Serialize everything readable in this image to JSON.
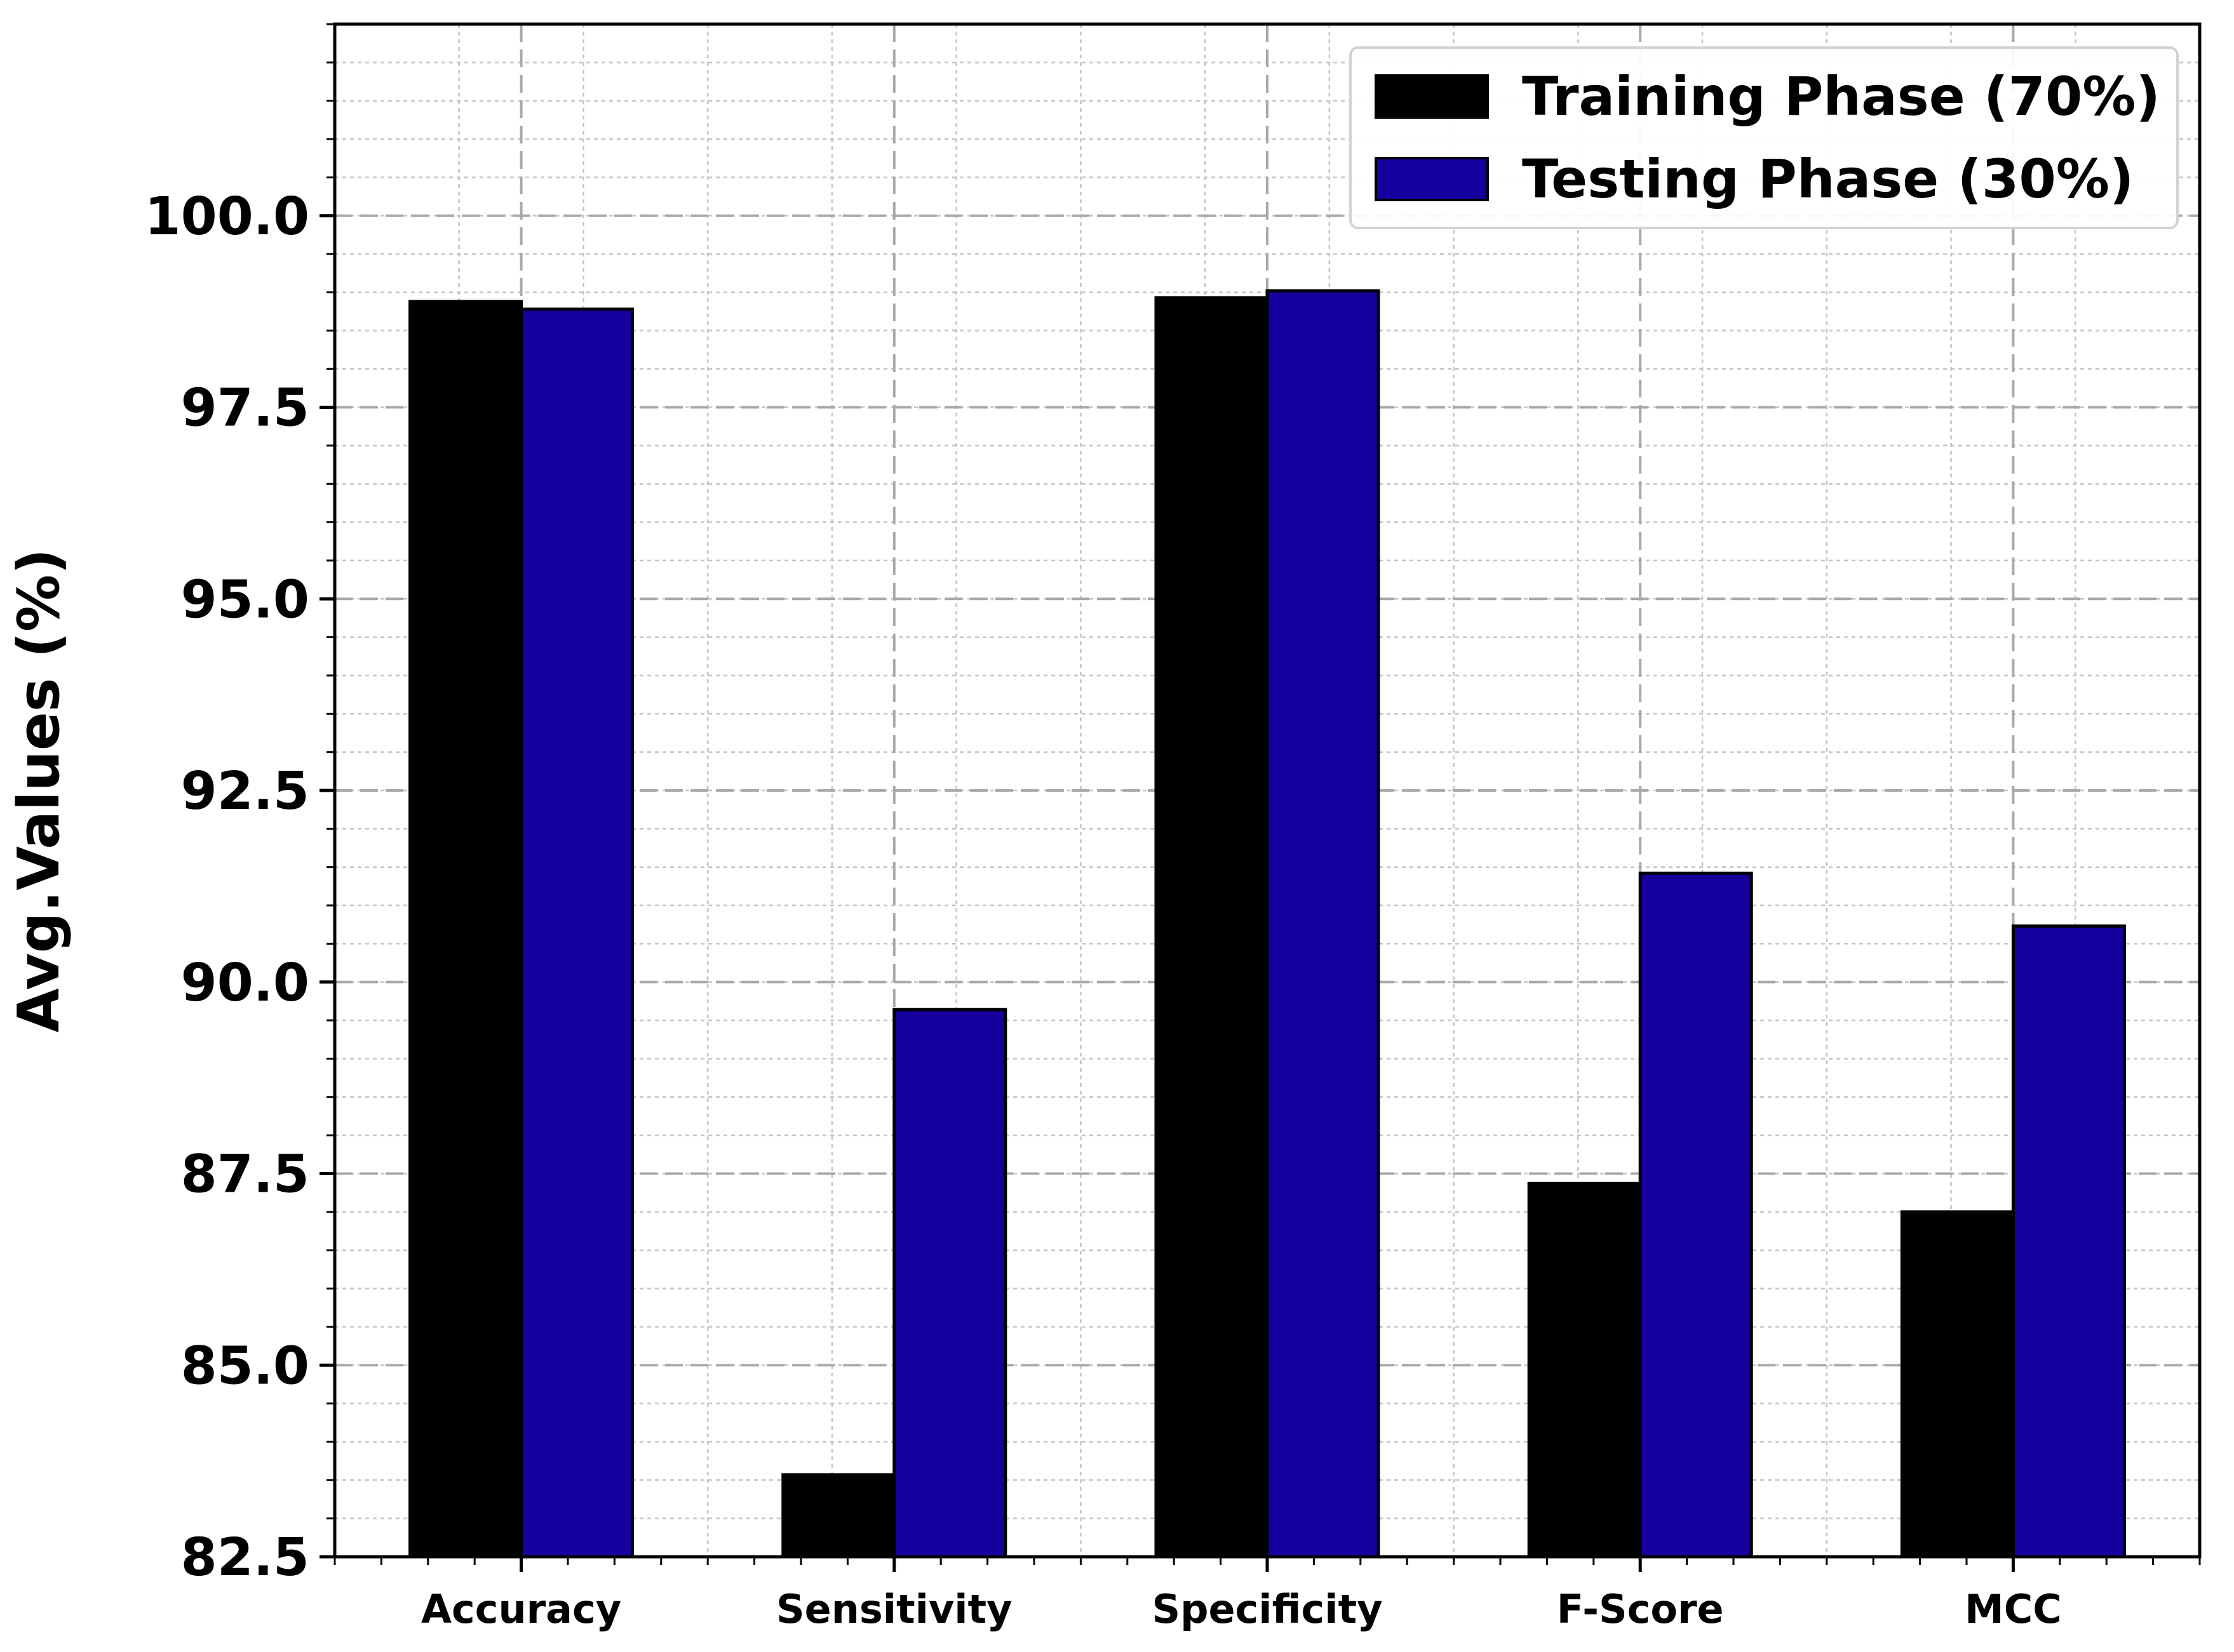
{
  "chart_data": {
    "type": "bar",
    "categories": [
      "Accuracy",
      "Sensitivity",
      "Specificity",
      "F-Score",
      "MCC"
    ],
    "series": [
      {
        "name": "Training Phase (70%)",
        "values": [
          98.88,
          83.57,
          98.93,
          87.37,
          87.0
        ],
        "color": "#000000"
      },
      {
        "name": "Testing Phase (30%)",
        "values": [
          98.78,
          89.64,
          99.02,
          91.42,
          90.73
        ],
        "color": "#15009e"
      }
    ],
    "title": "",
    "xlabel": "",
    "ylabel": "Avg.Values (%)",
    "ylim": [
      82.5,
      102.5
    ],
    "yticks": [
      82.5,
      85.0,
      87.5,
      90.0,
      92.5,
      95.0,
      97.5,
      100.0
    ],
    "ytick_labels": [
      "82.5",
      "85.0",
      "87.5",
      "90.0",
      "92.5",
      "95.0",
      "97.5",
      "100.0"
    ],
    "grid": true,
    "legend_position": "top-right",
    "edge_color": "#000000"
  }
}
